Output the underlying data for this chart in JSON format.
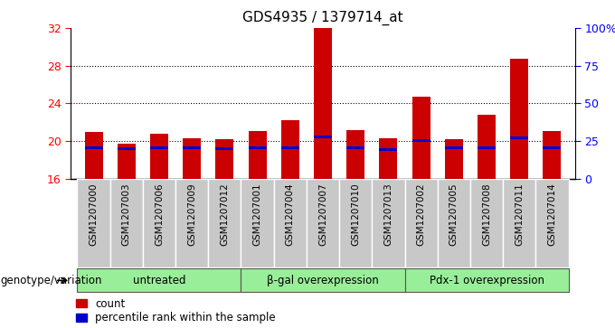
{
  "title": "GDS4935 / 1379714_at",
  "samples": [
    "GSM1207000",
    "GSM1207003",
    "GSM1207006",
    "GSM1207009",
    "GSM1207012",
    "GSM1207001",
    "GSM1207004",
    "GSM1207007",
    "GSM1207010",
    "GSM1207013",
    "GSM1207002",
    "GSM1207005",
    "GSM1207008",
    "GSM1207011",
    "GSM1207014"
  ],
  "count_values": [
    21.0,
    19.7,
    20.8,
    20.3,
    20.2,
    21.1,
    22.2,
    32.0,
    21.2,
    20.3,
    24.7,
    20.2,
    22.8,
    28.7,
    21.1
  ],
  "percentile_values": [
    19.3,
    19.2,
    19.3,
    19.3,
    19.2,
    19.3,
    19.3,
    20.4,
    19.3,
    19.1,
    20.1,
    19.3,
    19.3,
    20.3,
    19.3
  ],
  "ylim_left": [
    16,
    32
  ],
  "ylim_right": [
    0,
    100
  ],
  "yticks_left": [
    16,
    20,
    24,
    28,
    32
  ],
  "yticks_right": [
    0,
    25,
    50,
    75,
    100
  ],
  "ytick_labels_right": [
    "0",
    "25",
    "50",
    "75",
    "100%"
  ],
  "bar_color": "#cc0000",
  "percentile_color": "#0000cc",
  "bg_color": "#c8c8c8",
  "groups": [
    {
      "label": "untreated",
      "start": 0,
      "end": 5
    },
    {
      "label": "β-gal overexpression",
      "start": 5,
      "end": 10
    },
    {
      "label": "Pdx-1 overexpression",
      "start": 10,
      "end": 15
    }
  ],
  "group_color": "#99ee99",
  "xlabel_left": "genotype/variation",
  "legend_count": "count",
  "legend_pct": "percentile rank within the sample",
  "bar_width": 0.55
}
